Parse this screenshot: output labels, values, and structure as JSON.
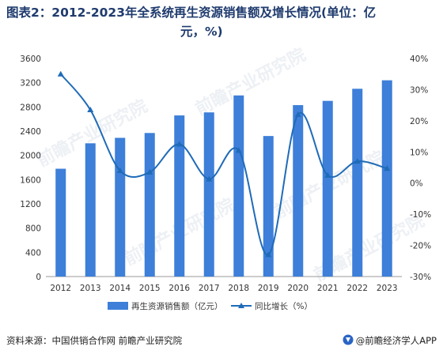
{
  "title_line1": "图表2：2012-2023年全系统再生资源销售额及增长情况(单位：亿",
  "title_line2": "元，%)",
  "chart_data": {
    "type": "bar",
    "categories": [
      "2012",
      "2013",
      "2014",
      "2015",
      "2016",
      "2017",
      "2018",
      "2019",
      "2020",
      "2021",
      "2022",
      "2023"
    ],
    "series": [
      {
        "name": "再生资源销售额（亿元）",
        "type": "bar",
        "axis": "left",
        "color": "#3d7fd9",
        "values": [
          1780,
          2200,
          2290,
          2370,
          2660,
          2710,
          2990,
          2320,
          2830,
          2900,
          3100,
          3240
        ]
      },
      {
        "name": "同比增长（%）",
        "type": "line",
        "axis": "right",
        "color": "#1f6bb8",
        "values": [
          35,
          23.5,
          4,
          3.5,
          12.5,
          1.3,
          10.5,
          -23,
          22,
          2.5,
          7,
          4.7
        ]
      }
    ],
    "y_left": {
      "min": 0,
      "max": 3600,
      "ticks": [
        0,
        400,
        800,
        1200,
        1600,
        2000,
        2400,
        2800,
        3200,
        3600
      ]
    },
    "y_right": {
      "min": -30,
      "max": 40,
      "ticks": [
        "-30%",
        "-20%",
        "-10%",
        "0%",
        "10%",
        "20%",
        "30%",
        "40%"
      ],
      "tick_values": [
        -30,
        -20,
        -10,
        0,
        10,
        20,
        30,
        40
      ]
    },
    "grid": false,
    "legend": "bottom"
  },
  "footer": {
    "source": "资料来源：中国供销合作网 前瞻产业研究院",
    "brand": "@前瞻经济学人APP"
  },
  "watermark": "前瞻产业研究院"
}
